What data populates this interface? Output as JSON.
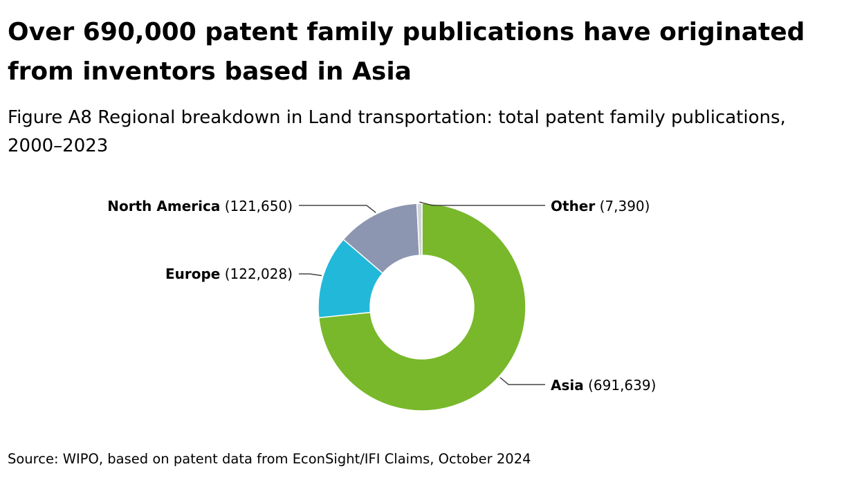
{
  "title": "Over 690,000 patent family publications have originated from inventors based in Asia",
  "subtitle": "Figure A8 Regional breakdown in Land transportation: total patent family publications, 2000–2023",
  "source": "Source: WIPO, based on patent data from EconSight/IFI Claims, October 2024",
  "chart_data": {
    "type": "pie",
    "donut": true,
    "categories": [
      "Asia",
      "Europe",
      "North America",
      "Other"
    ],
    "values": [
      691639,
      122028,
      121650,
      7390
    ],
    "value_labels": [
      "(691,639)",
      "(122,028)",
      "(121,650)",
      "(7,390)"
    ],
    "colors": [
      "#78b82a",
      "#22b8d9",
      "#8c96b0",
      "#d0d4d8"
    ],
    "legend": "none"
  }
}
